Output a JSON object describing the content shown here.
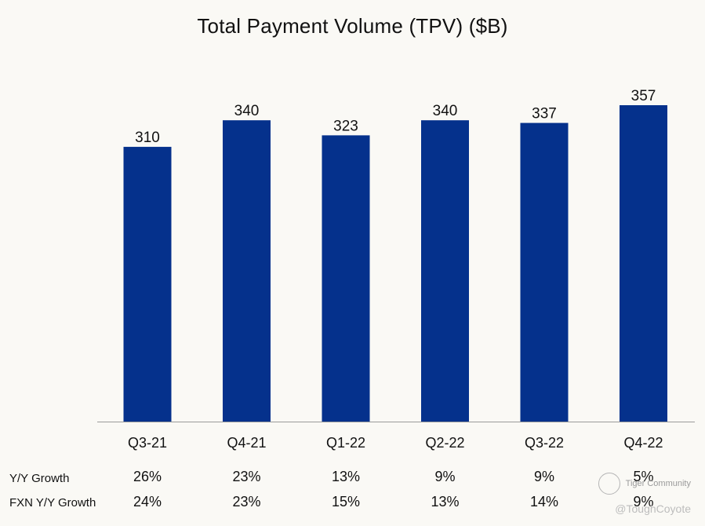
{
  "chart_data": {
    "type": "bar",
    "title": "Total Payment Volume (TPV) ($B)",
    "categories": [
      "Q3-21",
      "Q4-21",
      "Q1-22",
      "Q2-22",
      "Q3-22",
      "Q4-22"
    ],
    "values": [
      310,
      340,
      323,
      340,
      337,
      357
    ],
    "data_labels": [
      "310",
      "340",
      "323",
      "340",
      "337",
      "357"
    ],
    "bar_color": "#05318c",
    "ylim": [
      0,
      357
    ],
    "grid": false,
    "legend": "none",
    "table_rows": [
      {
        "label": "Y/Y Growth",
        "values": [
          "26%",
          "23%",
          "13%",
          "9%",
          "9%",
          "5%"
        ]
      },
      {
        "label": "FXN Y/Y Growth",
        "values": [
          "24%",
          "23%",
          "15%",
          "13%",
          "14%",
          "9%"
        ]
      }
    ]
  },
  "watermark": {
    "brand": "Tiger Community",
    "handle": "@ToughCoyote",
    "icon": "tiger-logo-icon"
  }
}
